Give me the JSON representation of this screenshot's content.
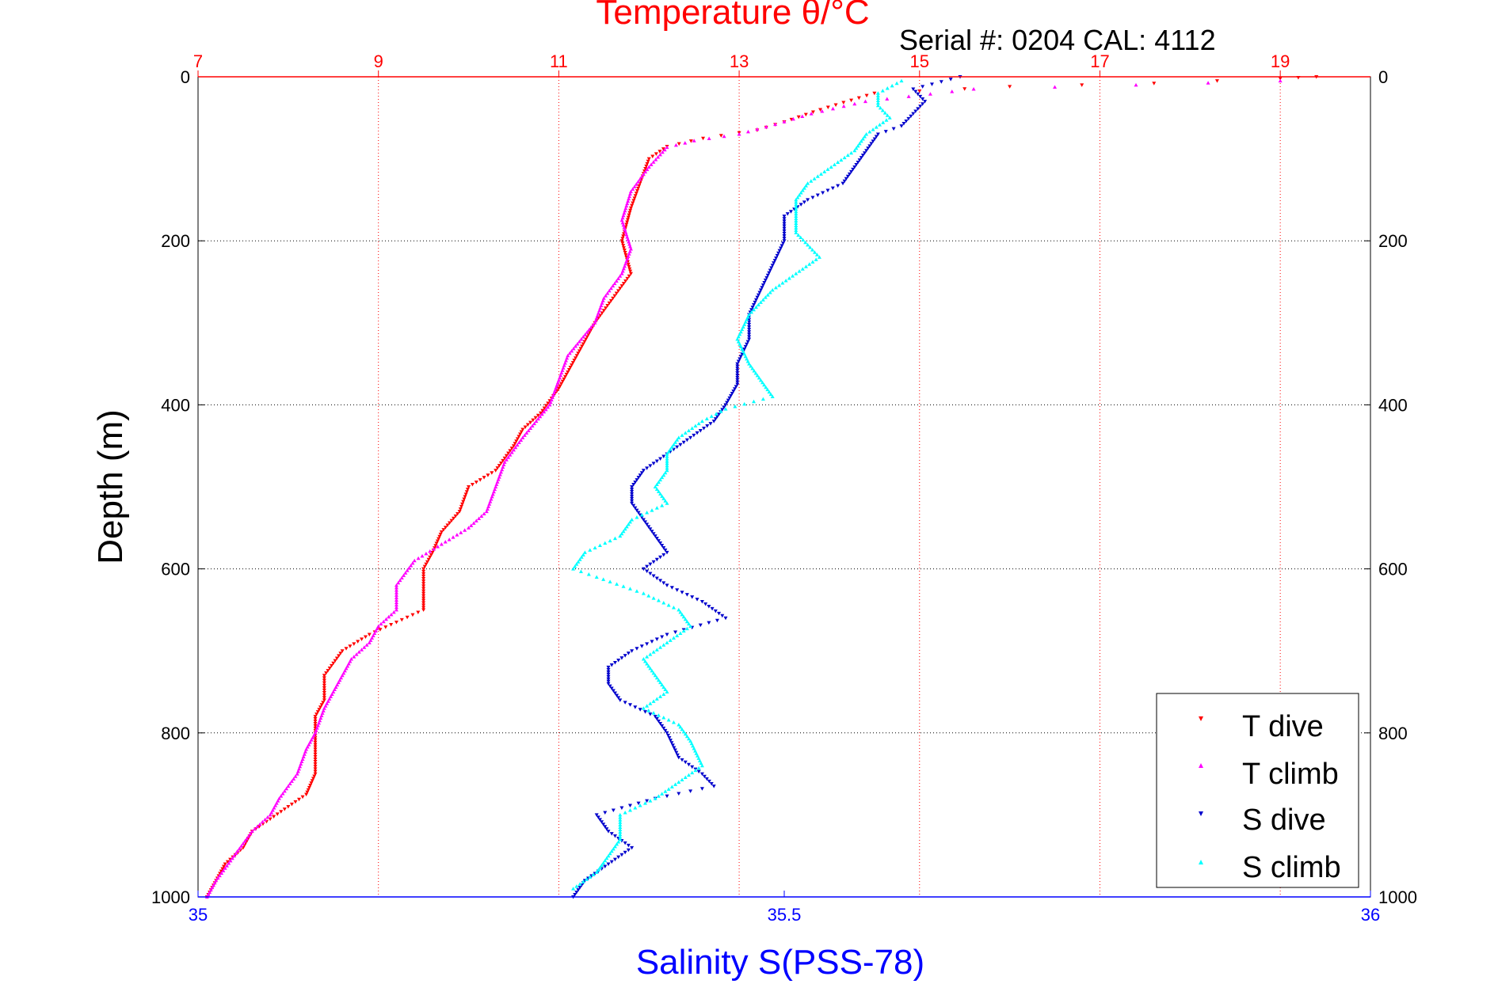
{
  "colors": {
    "temperature_axis": "#ff0000",
    "salinity_axis": "#0000ff",
    "grid_temperature": "#ff0000",
    "grid_depth": "#000000",
    "t_dive": "#ff0000",
    "t_climb": "#ff00ff",
    "s_dive": "#0000cc",
    "s_climb": "#00ffff"
  },
  "header": {
    "serial_text": "Serial #: 0204  CAL: 4112"
  },
  "chart_data": {
    "type": "scatter",
    "title": "Temperature θ/°C",
    "xlabel": "Salinity S(PSS-78)",
    "ylabel": "Depth (m)",
    "x2label": "Temperature θ/°C",
    "x_salinity_range": [
      35,
      36
    ],
    "x_temperature_range": [
      7,
      20
    ],
    "y_depth_range": [
      0,
      1000
    ],
    "y_reversed": true,
    "grid": true,
    "legend_position": "bottom-right",
    "depth_ticks": [
      "0",
      "200",
      "400",
      "600",
      "800",
      "1000"
    ],
    "temperature_ticks": [
      "7",
      "9",
      "11",
      "13",
      "15",
      "17",
      "19"
    ],
    "salinity_ticks": [
      "35",
      "35.5",
      "36"
    ],
    "legend": [
      "T dive",
      "T climb",
      "S dive",
      "S climb"
    ],
    "series": [
      {
        "name": "T dive",
        "axis": "temperature",
        "points": [
          [
            19.4,
            0
          ],
          [
            19.0,
            2
          ],
          [
            17.6,
            8
          ],
          [
            16.0,
            12
          ],
          [
            14.5,
            20
          ],
          [
            13.9,
            40
          ],
          [
            13.5,
            55
          ],
          [
            13.2,
            65
          ],
          [
            12.6,
            75
          ],
          [
            12.2,
            85
          ],
          [
            12.0,
            100
          ],
          [
            11.9,
            130
          ],
          [
            11.8,
            160
          ],
          [
            11.7,
            200
          ],
          [
            11.8,
            240
          ],
          [
            11.6,
            270
          ],
          [
            11.4,
            300
          ],
          [
            11.2,
            340
          ],
          [
            11.0,
            380
          ],
          [
            10.8,
            410
          ],
          [
            10.6,
            430
          ],
          [
            10.5,
            450
          ],
          [
            10.3,
            480
          ],
          [
            10.0,
            500
          ],
          [
            9.9,
            530
          ],
          [
            9.7,
            555
          ],
          [
            9.6,
            580
          ],
          [
            9.5,
            600
          ],
          [
            9.5,
            630
          ],
          [
            9.5,
            650
          ],
          [
            9.2,
            665
          ],
          [
            8.9,
            680
          ],
          [
            8.6,
            700
          ],
          [
            8.4,
            730
          ],
          [
            8.4,
            760
          ],
          [
            8.3,
            780
          ],
          [
            8.3,
            800
          ],
          [
            8.3,
            820
          ],
          [
            8.3,
            850
          ],
          [
            8.2,
            875
          ],
          [
            8.0,
            890
          ],
          [
            7.8,
            905
          ],
          [
            7.6,
            920
          ],
          [
            7.5,
            940
          ],
          [
            7.3,
            960
          ],
          [
            7.2,
            980
          ],
          [
            7.1,
            1000
          ]
        ]
      },
      {
        "name": "T climb",
        "axis": "temperature",
        "points": [
          [
            19.0,
            5
          ],
          [
            17.4,
            10
          ],
          [
            15.6,
            15
          ],
          [
            14.4,
            30
          ],
          [
            13.8,
            45
          ],
          [
            13.4,
            58
          ],
          [
            13.0,
            70
          ],
          [
            12.5,
            78
          ],
          [
            12.2,
            86
          ],
          [
            12.0,
            110
          ],
          [
            11.8,
            140
          ],
          [
            11.7,
            175
          ],
          [
            11.8,
            210
          ],
          [
            11.7,
            240
          ],
          [
            11.5,
            270
          ],
          [
            11.4,
            300
          ],
          [
            11.1,
            340
          ],
          [
            11.0,
            370
          ],
          [
            10.9,
            400
          ],
          [
            10.6,
            440
          ],
          [
            10.4,
            470
          ],
          [
            10.3,
            500
          ],
          [
            10.2,
            530
          ],
          [
            10.0,
            550
          ],
          [
            9.7,
            570
          ],
          [
            9.4,
            590
          ],
          [
            9.3,
            605
          ],
          [
            9.2,
            620
          ],
          [
            9.2,
            650
          ],
          [
            9.0,
            670
          ],
          [
            8.9,
            690
          ],
          [
            8.7,
            710
          ],
          [
            8.6,
            730
          ],
          [
            8.5,
            750
          ],
          [
            8.4,
            770
          ],
          [
            8.3,
            800
          ],
          [
            8.2,
            820
          ],
          [
            8.1,
            850
          ],
          [
            7.9,
            880
          ],
          [
            7.8,
            900
          ],
          [
            7.6,
            920
          ],
          [
            7.4,
            950
          ],
          [
            7.2,
            980
          ],
          [
            7.1,
            1000
          ]
        ]
      },
      {
        "name": "S dive",
        "axis": "salinity",
        "points": [
          [
            35.65,
            0
          ],
          [
            35.61,
            15
          ],
          [
            35.62,
            30
          ],
          [
            35.61,
            45
          ],
          [
            35.6,
            60
          ],
          [
            35.58,
            70
          ],
          [
            35.57,
            90
          ],
          [
            35.56,
            110
          ],
          [
            35.55,
            130
          ],
          [
            35.52,
            150
          ],
          [
            35.5,
            170
          ],
          [
            35.5,
            200
          ],
          [
            35.49,
            230
          ],
          [
            35.48,
            260
          ],
          [
            35.47,
            290
          ],
          [
            35.47,
            320
          ],
          [
            35.46,
            350
          ],
          [
            35.46,
            375
          ],
          [
            35.45,
            400
          ],
          [
            35.44,
            420
          ],
          [
            35.42,
            440
          ],
          [
            35.4,
            460
          ],
          [
            35.38,
            480
          ],
          [
            35.37,
            500
          ],
          [
            35.37,
            520
          ],
          [
            35.38,
            540
          ],
          [
            35.39,
            560
          ],
          [
            35.4,
            580
          ],
          [
            35.38,
            600
          ],
          [
            35.4,
            620
          ],
          [
            35.43,
            640
          ],
          [
            35.45,
            660
          ],
          [
            35.4,
            680
          ],
          [
            35.37,
            700
          ],
          [
            35.35,
            720
          ],
          [
            35.35,
            740
          ],
          [
            35.36,
            760
          ],
          [
            35.39,
            780
          ],
          [
            35.4,
            800
          ],
          [
            35.41,
            830
          ],
          [
            35.43,
            850
          ],
          [
            35.44,
            865
          ],
          [
            35.39,
            880
          ],
          [
            35.34,
            900
          ],
          [
            35.35,
            920
          ],
          [
            35.37,
            940
          ],
          [
            35.35,
            960
          ],
          [
            35.33,
            980
          ],
          [
            35.32,
            1000
          ]
        ]
      },
      {
        "name": "S climb",
        "axis": "salinity",
        "points": [
          [
            35.6,
            5
          ],
          [
            35.58,
            20
          ],
          [
            35.58,
            35
          ],
          [
            35.59,
            50
          ],
          [
            35.57,
            70
          ],
          [
            35.56,
            90
          ],
          [
            35.54,
            110
          ],
          [
            35.52,
            130
          ],
          [
            35.51,
            150
          ],
          [
            35.51,
            170
          ],
          [
            35.51,
            190
          ],
          [
            35.52,
            205
          ],
          [
            35.53,
            220
          ],
          [
            35.51,
            240
          ],
          [
            35.49,
            260
          ],
          [
            35.47,
            290
          ],
          [
            35.46,
            320
          ],
          [
            35.47,
            350
          ],
          [
            35.48,
            370
          ],
          [
            35.49,
            390
          ],
          [
            35.45,
            405
          ],
          [
            35.43,
            420
          ],
          [
            35.41,
            440
          ],
          [
            35.4,
            460
          ],
          [
            35.4,
            480
          ],
          [
            35.39,
            500
          ],
          [
            35.4,
            520
          ],
          [
            35.37,
            540
          ],
          [
            35.36,
            560
          ],
          [
            35.33,
            580
          ],
          [
            35.32,
            600
          ],
          [
            35.34,
            610
          ],
          [
            35.38,
            630
          ],
          [
            35.41,
            650
          ],
          [
            35.42,
            670
          ],
          [
            35.4,
            690
          ],
          [
            35.38,
            710
          ],
          [
            35.39,
            730
          ],
          [
            35.4,
            750
          ],
          [
            35.38,
            770
          ],
          [
            35.41,
            790
          ],
          [
            35.42,
            810
          ],
          [
            35.43,
            840
          ],
          [
            35.41,
            860
          ],
          [
            35.39,
            880
          ],
          [
            35.36,
            900
          ],
          [
            35.36,
            930
          ],
          [
            35.35,
            950
          ],
          [
            35.34,
            970
          ],
          [
            35.32,
            990
          ]
        ]
      }
    ]
  }
}
